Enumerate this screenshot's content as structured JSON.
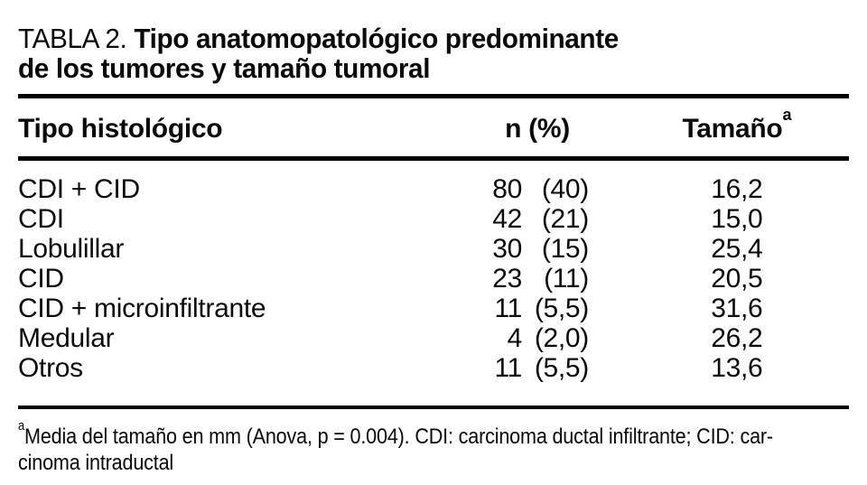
{
  "document": {
    "label": "TABLA 2.",
    "title_line1": "Tipo anatomopatológico predominante",
    "title_line2": "de los tumores y tamaño tumoral"
  },
  "table": {
    "columns": [
      {
        "label": "Tipo histológico"
      },
      {
        "label": "n (%)"
      },
      {
        "label": "Tamaño",
        "superscript": "a"
      }
    ],
    "rows": [
      {
        "tipo": "CDI + CID",
        "n": "80",
        "pct": "(40)",
        "tamano": "16,2"
      },
      {
        "tipo": "CDI",
        "n": "42",
        "pct": "(21)",
        "tamano": "15,0"
      },
      {
        "tipo": "Lobulillar",
        "n": "30",
        "pct": "(15)",
        "tamano": "25,4"
      },
      {
        "tipo": "CID",
        "n": "23",
        "pct": "(11)",
        "tamano": "20,5"
      },
      {
        "tipo": "CID + microinfiltrante",
        "n": "11",
        "pct": "(5,5)",
        "tamano": "31,6"
      },
      {
        "tipo": "Medular",
        "n": "4",
        "pct": "(2,0)",
        "tamano": "26,2"
      },
      {
        "tipo": "Otros",
        "n": "11",
        "pct": "(5,5)",
        "tamano": "13,6"
      }
    ]
  },
  "footnote": {
    "marker": "a",
    "line1": "Media del tamaño en mm (Anova, p = 0.004). CDI: carcinoma ductal infiltrante; CID: car-",
    "line2": "cinoma intraductal"
  },
  "colors": {
    "background": "#ffffff",
    "text": "#0a0a0a",
    "rule": "#000000"
  }
}
